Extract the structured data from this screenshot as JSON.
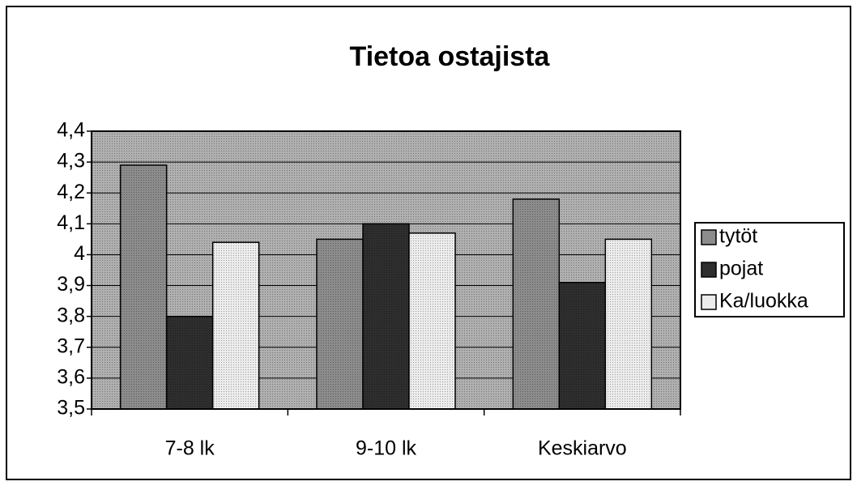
{
  "chart_data": {
    "type": "bar",
    "title": "Tietoa ostajista",
    "categories": [
      "7-8 lk",
      "9-10 lk",
      "Keskiarvo"
    ],
    "series": [
      {
        "name": "tytöt",
        "color": "#8c8c8c",
        "values": [
          4.29,
          4.05,
          4.18
        ]
      },
      {
        "name": "pojat",
        "color": "#2e2e2e",
        "values": [
          3.8,
          4.1,
          3.91
        ]
      },
      {
        "name": "Ka/luokka",
        "color": "#ececec",
        "values": [
          4.04,
          4.07,
          4.05
        ]
      }
    ],
    "ylim": [
      3.5,
      4.4
    ],
    "yticks": [
      {
        "value": 3.5,
        "label": "3,5"
      },
      {
        "value": 3.6,
        "label": "3,6"
      },
      {
        "value": 3.7,
        "label": "3,7"
      },
      {
        "value": 3.8,
        "label": "3,8"
      },
      {
        "value": 3.9,
        "label": "3,9"
      },
      4,
      {
        "value": 4.1,
        "label": "4,1"
      },
      {
        "value": 4.2,
        "label": "4,2"
      },
      {
        "value": 4.3,
        "label": "4,3"
      },
      {
        "value": 4.4,
        "label": "4,4"
      }
    ],
    "grid": true,
    "legend": "right"
  }
}
